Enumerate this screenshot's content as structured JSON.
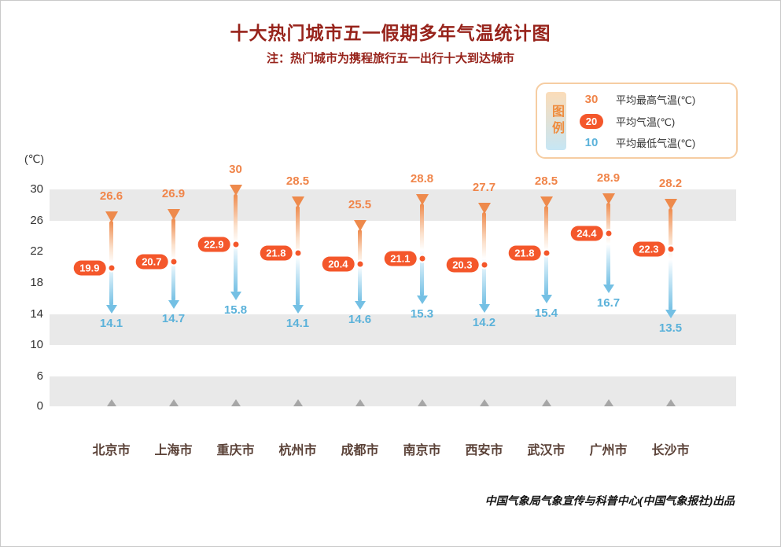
{
  "page": {
    "title": "十大热门城市五一假期多年气温统计图",
    "subtitle": "注：热门城市为携程旅行五一出行十大到达城市",
    "unit_label": "(℃)",
    "footer": "中国气象局气象宣传与科普中心(中国气象报社)出品"
  },
  "legend": {
    "title": "图例",
    "items": [
      {
        "sample": "30",
        "label": "平均最高气温(℃)",
        "type": "max"
      },
      {
        "sample": "20",
        "label": "平均气温(℃)",
        "type": "avg"
      },
      {
        "sample": "10",
        "label": "平均最低气温(℃)",
        "type": "min"
      }
    ]
  },
  "colors": {
    "title_text": "#97231b",
    "max_temp": "#f0854a",
    "avg_badge": "#f4572b",
    "min_temp": "#5bb2da",
    "bar_top": "#ee8a4c",
    "bar_bottom": "#74c0e4",
    "grid_band": "#e9e9e9",
    "legend_border": "#f6cda2",
    "city_text": "#5b4238",
    "axis_text": "#333333",
    "baseline_marker": "#a6a6a6"
  },
  "chart_data": {
    "type": "range",
    "title": "十大热门城市五一假期多年气温统计图",
    "subtitle": "注：热门城市为携程旅行五一出行十大到达城市",
    "ylabel": "(℃)",
    "yticks": [
      30,
      26,
      22,
      18,
      14,
      10,
      6,
      0
    ],
    "gray_bands": [
      [
        26,
        30
      ],
      [
        10,
        14
      ],
      [
        0,
        6
      ]
    ],
    "legend_position": "top-right",
    "categories": [
      "北京市",
      "上海市",
      "重庆市",
      "杭州市",
      "成都市",
      "南京市",
      "西安市",
      "武汉市",
      "广州市",
      "长沙市"
    ],
    "series": [
      {
        "name": "平均最高气温(℃)",
        "values": [
          26.6,
          26.9,
          30,
          28.5,
          25.5,
          28.8,
          27.7,
          28.5,
          28.9,
          28.2
        ]
      },
      {
        "name": "平均气温(℃)",
        "values": [
          19.9,
          20.7,
          22.9,
          21.8,
          20.4,
          21.1,
          20.3,
          21.8,
          24.4,
          22.3
        ]
      },
      {
        "name": "平均最低气温(℃)",
        "values": [
          14.1,
          14.7,
          15.8,
          14.1,
          14.6,
          15.3,
          14.2,
          15.4,
          16.7,
          13.5
        ]
      }
    ]
  }
}
